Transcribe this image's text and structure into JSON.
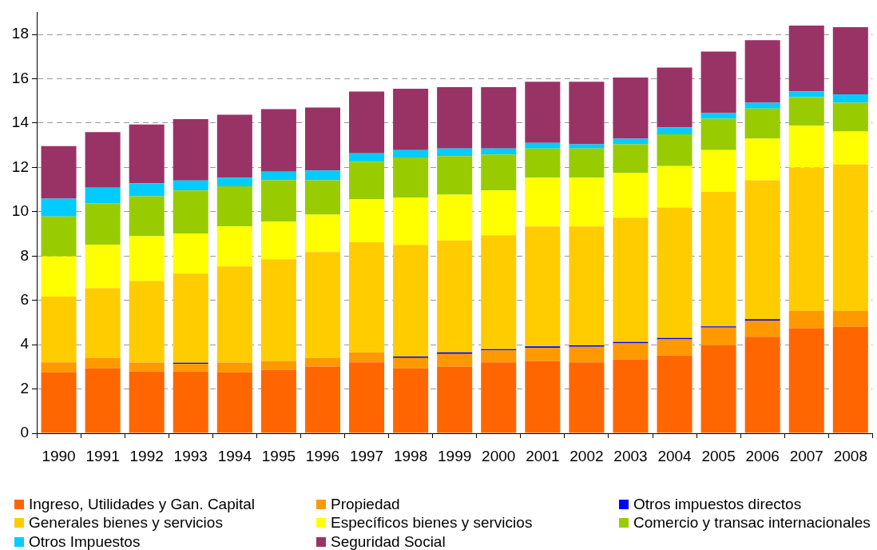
{
  "chart_data": {
    "type": "bar",
    "stacked": true,
    "categories": [
      "1990",
      "1991",
      "1992",
      "1993",
      "1994",
      "1995",
      "1996",
      "1997",
      "1998",
      "1999",
      "2000",
      "2001",
      "2002",
      "2003",
      "2004",
      "2005",
      "2006",
      "2007",
      "2008"
    ],
    "series": [
      {
        "name": "Ingreso, Utilidades y Gan. Capital",
        "color": "#ff6600",
        "values": [
          2.75,
          2.93,
          2.8,
          2.8,
          2.75,
          2.87,
          3.01,
          3.2,
          2.93,
          3.01,
          3.2,
          3.26,
          3.2,
          3.33,
          3.52,
          3.97,
          4.36,
          4.74,
          4.81
        ]
      },
      {
        "name": "Propiedad",
        "color": "#ff9900",
        "values": [
          0.45,
          0.46,
          0.39,
          0.33,
          0.44,
          0.39,
          0.38,
          0.45,
          0.47,
          0.57,
          0.54,
          0.59,
          0.71,
          0.73,
          0.72,
          0.8,
          0.73,
          0.78,
          0.71
        ]
      },
      {
        "name": "Otros impuestos directos",
        "color": "#0000ff",
        "values": [
          null,
          null,
          null,
          0.05,
          null,
          null,
          null,
          null,
          0.06,
          0.07,
          0.06,
          0.07,
          0.06,
          0.06,
          0.06,
          0.06,
          0.06,
          null,
          null
        ]
      },
      {
        "name": "Generales bienes y servicios",
        "color": "#ffcc00",
        "values": [
          2.97,
          3.16,
          3.68,
          4.03,
          4.34,
          4.6,
          4.79,
          4.97,
          5.05,
          5.05,
          5.14,
          5.42,
          5.37,
          5.61,
          5.89,
          6.07,
          6.27,
          6.48,
          6.61
        ]
      },
      {
        "name": "Específicos bienes y servicios",
        "color": "#ffff00",
        "values": [
          1.81,
          1.96,
          2.02,
          1.81,
          1.81,
          1.69,
          1.69,
          1.95,
          2.13,
          2.07,
          2.02,
          2.2,
          2.2,
          2.01,
          1.87,
          1.88,
          1.88,
          1.88,
          1.49
        ]
      },
      {
        "name": "Comercio y transac internacionales",
        "color": "#99cc00",
        "values": [
          1.81,
          1.87,
          1.81,
          1.94,
          1.81,
          1.87,
          1.55,
          1.69,
          1.81,
          1.74,
          1.62,
          1.31,
          1.31,
          1.3,
          1.43,
          1.42,
          1.36,
          1.29,
          1.3
        ]
      },
      {
        "name": "Otros Impuestos",
        "color": "#00ccff",
        "values": [
          0.8,
          0.71,
          0.58,
          0.45,
          0.39,
          0.39,
          0.44,
          0.38,
          0.33,
          0.34,
          0.27,
          0.26,
          0.19,
          0.26,
          0.32,
          0.25,
          0.26,
          0.26,
          0.38
        ]
      },
      {
        "name": "Seguridad Social",
        "color": "#993366",
        "values": [
          2.37,
          2.5,
          2.66,
          2.77,
          2.84,
          2.82,
          2.84,
          2.78,
          2.77,
          2.77,
          2.77,
          2.76,
          2.83,
          2.76,
          2.7,
          2.78,
          2.82,
          2.97,
          3.03
        ]
      }
    ],
    "ylim": [
      0,
      19
    ],
    "yticks": [
      0,
      2,
      4,
      6,
      8,
      10,
      12,
      14,
      16,
      18
    ],
    "grid": "y",
    "legend": "bottom"
  }
}
